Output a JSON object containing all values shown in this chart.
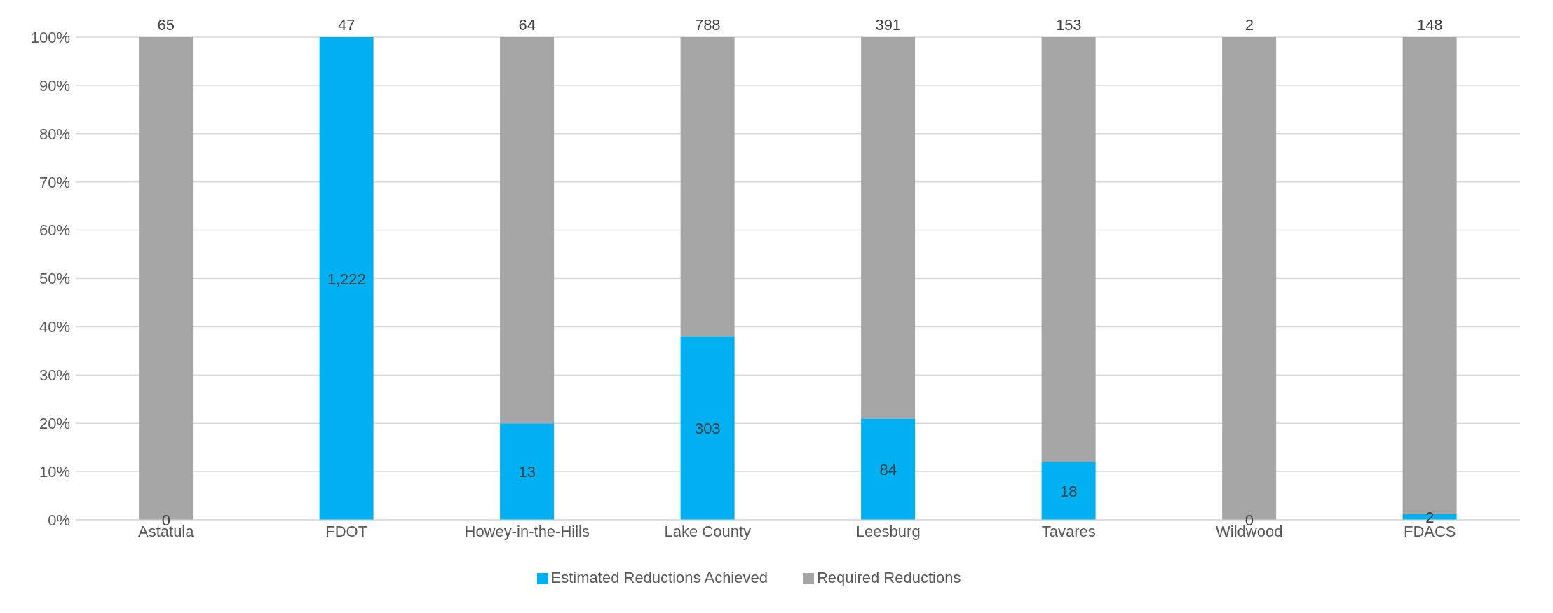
{
  "chart_data": {
    "type": "bar",
    "stacked": true,
    "categories": [
      "Astatula",
      "FDOT",
      "Howey-in-the-Hills",
      "Lake County",
      "Leesburg",
      "Tavares",
      "Wildwood",
      "FDACS"
    ],
    "series": [
      {
        "name": "Estimated Reductions Achieved",
        "color": "#00b0f0",
        "values": [
          0,
          100,
          20,
          38,
          21,
          12,
          0,
          1.2
        ]
      },
      {
        "name": "Required Reductions",
        "color": "#a5a5a5",
        "values": [
          100,
          0,
          80,
          62,
          79,
          88,
          100,
          98.8
        ]
      }
    ],
    "annotations": [
      "0",
      "1,222",
      "13",
      "303",
      "84",
      "18",
      "0",
      "2",
      {
        "text": "65",
        "x": "Astatula",
        "y": 100
      },
      {
        "text": "47",
        "x": "FDOT",
        "y": 100
      },
      {
        "text": "64",
        "x": "Howey-in-the-Hills",
        "y": 100
      },
      {
        "text": "788",
        "x": "Lake County",
        "y": 100
      },
      {
        "text": "391",
        "x": "Leesburg",
        "y": 100
      },
      {
        "text": "153",
        "x": "Tavares",
        "y": 100
      },
      {
        "text": "2",
        "x": "Wildwood",
        "y": 100
      },
      {
        "text": "148",
        "x": "FDACS",
        "y": 100
      }
    ],
    "ylim": [
      0,
      100
    ],
    "yticks": [
      {
        "value": 0,
        "label": "0%"
      },
      {
        "value": 10,
        "label": "10%"
      },
      {
        "value": 20,
        "label": "20%"
      },
      {
        "value": 30,
        "label": "30%"
      },
      {
        "value": 40,
        "label": "40%"
      },
      {
        "value": 50,
        "label": "50%"
      },
      {
        "value": 60,
        "label": "60%"
      },
      {
        "value": 70,
        "label": "70%"
      },
      {
        "value": 80,
        "label": "80%"
      },
      {
        "value": 90,
        "label": "90%"
      },
      {
        "value": 100,
        "label": "100%"
      }
    ],
    "grid": "y",
    "legend": "bottom"
  }
}
